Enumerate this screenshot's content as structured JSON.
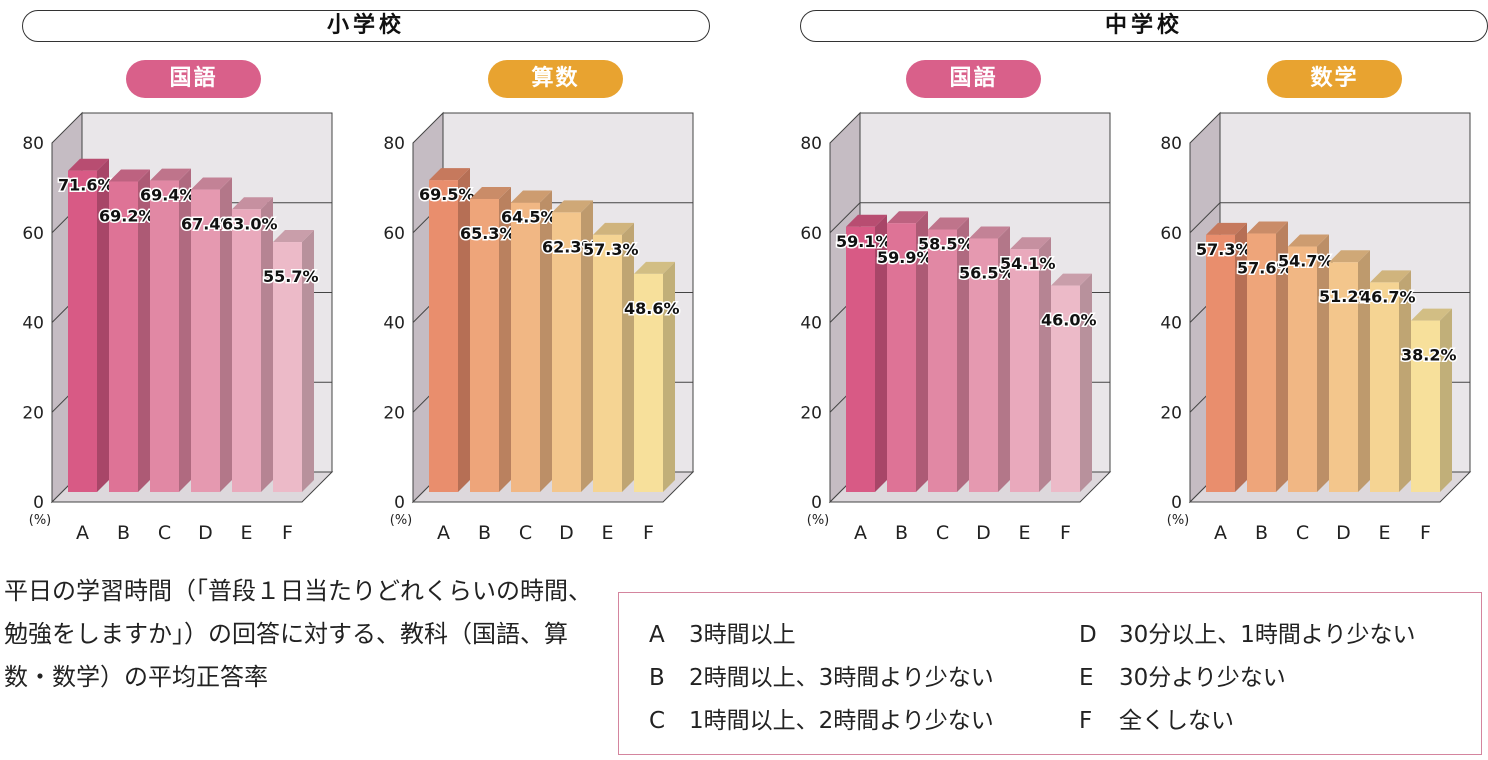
{
  "schools": [
    {
      "label": "小学校"
    },
    {
      "label": "中学校"
    }
  ],
  "chart_data": [
    {
      "type": "bar",
      "school": "小学校",
      "title": "国語",
      "color": "#d9608a",
      "categories": [
        "A",
        "B",
        "C",
        "D",
        "E",
        "F"
      ],
      "values": [
        71.6,
        69.2,
        69.4,
        67.4,
        63.0,
        55.7
      ],
      "ylim": [
        0,
        80
      ],
      "yticks": [
        "0",
        "20",
        "40",
        "60",
        "80"
      ],
      "yunit": "(%)",
      "bar_colors": [
        "#d85a85",
        "#de7396",
        "#e188a4",
        "#e599b0",
        "#e9a9bc",
        "#ecbac8"
      ],
      "grid": true
    },
    {
      "type": "bar",
      "school": "小学校",
      "title": "算数",
      "color": "#e8a330",
      "categories": [
        "A",
        "B",
        "C",
        "D",
        "E",
        "F"
      ],
      "values": [
        69.5,
        65.3,
        64.5,
        62.3,
        57.3,
        48.6
      ],
      "ylim": [
        0,
        80
      ],
      "yticks": [
        "0",
        "20",
        "40",
        "60",
        "80"
      ],
      "yunit": "(%)",
      "bar_colors": [
        "#e98e6d",
        "#eea57a",
        "#f1b784",
        "#f3c68c",
        "#f5d493",
        "#f7e09b"
      ],
      "grid": true
    },
    {
      "type": "bar",
      "school": "中学校",
      "title": "国語",
      "color": "#d9608a",
      "categories": [
        "A",
        "B",
        "C",
        "D",
        "E",
        "F"
      ],
      "values": [
        59.1,
        59.9,
        58.5,
        56.5,
        54.1,
        46.0
      ],
      "ylim": [
        0,
        80
      ],
      "yticks": [
        "0",
        "20",
        "40",
        "60",
        "80"
      ],
      "yunit": "(%)",
      "bar_colors": [
        "#d85a85",
        "#de7396",
        "#e188a4",
        "#e599b0",
        "#e9a9bc",
        "#ecbac8"
      ],
      "grid": true
    },
    {
      "type": "bar",
      "school": "中学校",
      "title": "数学",
      "color": "#e8a330",
      "categories": [
        "A",
        "B",
        "C",
        "D",
        "E",
        "F"
      ],
      "values": [
        57.3,
        57.6,
        54.7,
        51.2,
        46.7,
        38.2
      ],
      "ylim": [
        0,
        80
      ],
      "yticks": [
        "0",
        "20",
        "40",
        "60",
        "80"
      ],
      "yunit": "(%)",
      "bar_colors": [
        "#e98e6d",
        "#eea57a",
        "#f1b784",
        "#f3c68c",
        "#f5d493",
        "#f7e09b"
      ],
      "grid": true
    }
  ],
  "caption": "平日の学習時間（「普段１日当たりどれくらいの時間、勉強をしますか」）の回答に対する、教科（国語、算数・数学）の平均正答率",
  "legend": [
    {
      "key": "A",
      "text": "3時間以上"
    },
    {
      "key": "B",
      "text": "2時間以上、3時間より少ない"
    },
    {
      "key": "C",
      "text": "1時間以上、2時間より少ない"
    },
    {
      "key": "D",
      "text": "30分以上、1時間より少ない"
    },
    {
      "key": "E",
      "text": "30分より少ない"
    },
    {
      "key": "F",
      "text": "全くしない"
    }
  ]
}
